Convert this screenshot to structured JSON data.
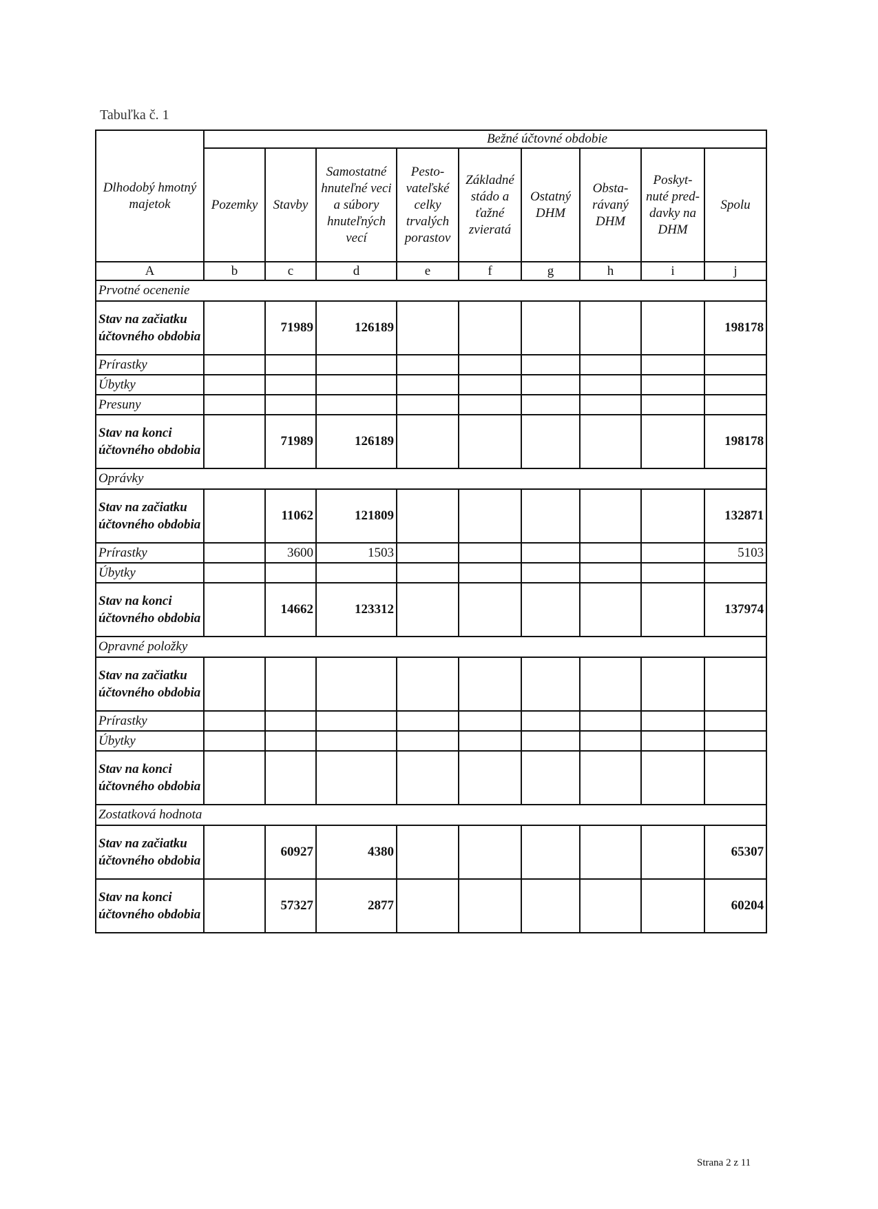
{
  "title": "Tabuľka č. 1",
  "table": {
    "corner_header": "Dlhodobý hmotný majetok",
    "group_header": "Bežné účtovné obdobie",
    "columns": [
      "Pozemky",
      "Stavby",
      "Samostatné hnuteľné veci a súbory hnuteľných vecí",
      "Pesto-vateľské celky trvalých porastov",
      "Základné stádo a ťažné zvieratá",
      "Ostatný DHM",
      "Obsta-rávaný DHM",
      "Poskyt-nuté pred-davky na DHM",
      "Spolu"
    ],
    "letters": [
      "A",
      "b",
      "c",
      "d",
      "e",
      "f",
      "g",
      "h",
      "i",
      "j"
    ],
    "sections": [
      {
        "label": "Prvotné ocenenie",
        "rows": [
          {
            "label": "Stav na začiatku účtovného obdobia",
            "bold": true,
            "values": [
              "",
              "71989",
              "126189",
              "",
              "",
              "",
              "",
              "",
              "198178"
            ]
          },
          {
            "label": "Prírastky",
            "bold": false,
            "values": [
              "",
              "",
              "",
              "",
              "",
              "",
              "",
              "",
              ""
            ]
          },
          {
            "label": "Úbytky",
            "bold": false,
            "values": [
              "",
              "",
              "",
              "",
              "",
              "",
              "",
              "",
              ""
            ]
          },
          {
            "label": "Presuny",
            "bold": false,
            "values": [
              "",
              "",
              "",
              "",
              "",
              "",
              "",
              "",
              ""
            ]
          },
          {
            "label": "Stav na konci účtovného obdobia",
            "bold": true,
            "values": [
              "",
              "71989",
              "126189",
              "",
              "",
              "",
              "",
              "",
              "198178"
            ]
          }
        ]
      },
      {
        "label": "Oprávky",
        "rows": [
          {
            "label": "Stav na začiatku účtovného obdobia",
            "bold": true,
            "values": [
              "",
              "11062",
              "121809",
              "",
              "",
              "",
              "",
              "",
              "132871"
            ]
          },
          {
            "label": "Prírastky",
            "bold": false,
            "values": [
              "",
              "3600",
              "1503",
              "",
              "",
              "",
              "",
              "",
              "5103"
            ]
          },
          {
            "label": "Úbytky",
            "bold": false,
            "values": [
              "",
              "",
              "",
              "",
              "",
              "",
              "",
              "",
              ""
            ]
          },
          {
            "label": "Stav na konci účtovného obdobia",
            "bold": true,
            "values": [
              "",
              "14662",
              "123312",
              "",
              "",
              "",
              "",
              "",
              "137974"
            ]
          }
        ]
      },
      {
        "label": "Opravné položky",
        "rows": [
          {
            "label": "Stav na začiatku účtovného obdobia",
            "bold": true,
            "values": [
              "",
              "",
              "",
              "",
              "",
              "",
              "",
              "",
              ""
            ]
          },
          {
            "label": "Prírastky",
            "bold": false,
            "values": [
              "",
              "",
              "",
              "",
              "",
              "",
              "",
              "",
              ""
            ]
          },
          {
            "label": "Úbytky",
            "bold": false,
            "values": [
              "",
              "",
              "",
              "",
              "",
              "",
              "",
              "",
              ""
            ]
          },
          {
            "label": "Stav na konci účtovného obdobia",
            "bold": true,
            "values": [
              "",
              "",
              "",
              "",
              "",
              "",
              "",
              "",
              ""
            ]
          }
        ]
      },
      {
        "label": "Zostatková hodnota",
        "rows": [
          {
            "label": "Stav na začiatku účtovného obdobia",
            "bold": true,
            "values": [
              "",
              "60927",
              "4380",
              "",
              "",
              "",
              "",
              "",
              "65307"
            ]
          },
          {
            "label": "Stav na konci účtovného obdobia",
            "bold": true,
            "values": [
              "",
              "57327",
              "2877",
              "",
              "",
              "",
              "",
              "",
              "60204"
            ]
          }
        ]
      }
    ]
  },
  "footer": "Strana 2 z 11"
}
